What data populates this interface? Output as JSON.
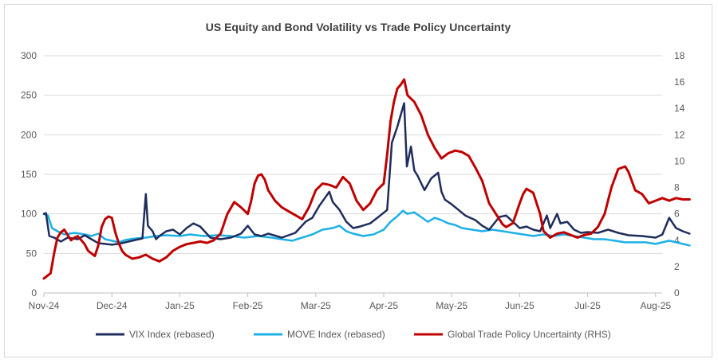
{
  "chart_data": {
    "type": "line",
    "title": "US Equity and Bond Volatility vs Trade Policy Uncertainty",
    "x": [
      "Nov-24",
      "Dec-24",
      "Jan-25",
      "Feb-25",
      "Mar-25",
      "Apr-25",
      "May-25",
      "Jun-25",
      "Jul-25",
      "Aug-25"
    ],
    "ylim_left": [
      0,
      300
    ],
    "yticks_left": [
      0,
      50,
      100,
      150,
      200,
      250,
      300
    ],
    "ylim_right": [
      0,
      18
    ],
    "yticks_right": [
      0,
      2,
      4,
      6,
      8,
      10,
      12,
      14,
      16,
      18
    ],
    "legend_position": "bottom",
    "series": [
      {
        "name": "VIX Index (rebased)",
        "axis": "left",
        "color": "#1f2d5c",
        "points": [
          [
            0,
            100
          ],
          [
            0.03,
            101
          ],
          [
            0.08,
            72
          ],
          [
            0.15,
            70
          ],
          [
            0.25,
            65
          ],
          [
            0.35,
            70
          ],
          [
            0.5,
            68
          ],
          [
            0.6,
            73
          ],
          [
            0.7,
            68
          ],
          [
            0.8,
            63
          ],
          [
            0.9,
            62
          ],
          [
            1.0,
            61
          ],
          [
            1.1,
            62
          ],
          [
            1.2,
            64
          ],
          [
            1.35,
            67
          ],
          [
            1.45,
            69
          ],
          [
            1.5,
            125
          ],
          [
            1.53,
            85
          ],
          [
            1.6,
            78
          ],
          [
            1.65,
            68
          ],
          [
            1.7,
            72
          ],
          [
            1.8,
            78
          ],
          [
            1.9,
            80
          ],
          [
            2.0,
            74
          ],
          [
            2.1,
            82
          ],
          [
            2.2,
            88
          ],
          [
            2.3,
            84
          ],
          [
            2.45,
            70
          ],
          [
            2.6,
            68
          ],
          [
            2.75,
            70
          ],
          [
            2.9,
            75
          ],
          [
            3.0,
            85
          ],
          [
            3.1,
            74
          ],
          [
            3.2,
            72
          ],
          [
            3.3,
            75
          ],
          [
            3.5,
            70
          ],
          [
            3.7,
            76
          ],
          [
            3.85,
            90
          ],
          [
            3.95,
            95
          ],
          [
            4.05,
            110
          ],
          [
            4.15,
            122
          ],
          [
            4.2,
            128
          ],
          [
            4.25,
            115
          ],
          [
            4.35,
            105
          ],
          [
            4.45,
            90
          ],
          [
            4.55,
            82
          ],
          [
            4.65,
            84
          ],
          [
            4.8,
            88
          ],
          [
            4.95,
            98
          ],
          [
            5.05,
            105
          ],
          [
            5.12,
            190
          ],
          [
            5.2,
            210
          ],
          [
            5.3,
            240
          ],
          [
            5.34,
            160
          ],
          [
            5.4,
            185
          ],
          [
            5.45,
            155
          ],
          [
            5.5,
            148
          ],
          [
            5.6,
            130
          ],
          [
            5.7,
            145
          ],
          [
            5.8,
            152
          ],
          [
            5.85,
            128
          ],
          [
            5.9,
            118
          ],
          [
            6.0,
            112
          ],
          [
            6.1,
            105
          ],
          [
            6.2,
            98
          ],
          [
            6.35,
            92
          ],
          [
            6.45,
            85
          ],
          [
            6.55,
            80
          ],
          [
            6.7,
            96
          ],
          [
            6.8,
            98
          ],
          [
            6.9,
            90
          ],
          [
            7.0,
            82
          ],
          [
            7.1,
            84
          ],
          [
            7.2,
            80
          ],
          [
            7.3,
            78
          ],
          [
            7.4,
            98
          ],
          [
            7.45,
            82
          ],
          [
            7.55,
            100
          ],
          [
            7.6,
            88
          ],
          [
            7.7,
            90
          ],
          [
            7.8,
            80
          ],
          [
            7.9,
            76
          ],
          [
            8.0,
            77
          ],
          [
            8.15,
            76
          ],
          [
            8.3,
            80
          ],
          [
            8.45,
            76
          ],
          [
            8.6,
            73
          ],
          [
            8.8,
            72
          ],
          [
            9.0,
            70
          ],
          [
            9.1,
            74
          ],
          [
            9.2,
            95
          ],
          [
            9.3,
            82
          ],
          [
            9.4,
            78
          ],
          [
            9.5,
            75
          ]
        ]
      },
      {
        "name": "MOVE Index (rebased)",
        "axis": "left",
        "color": "#1cb0e6",
        "points": [
          [
            0,
            100
          ],
          [
            0.06,
            98
          ],
          [
            0.12,
            82
          ],
          [
            0.2,
            78
          ],
          [
            0.3,
            74
          ],
          [
            0.45,
            76
          ],
          [
            0.6,
            74
          ],
          [
            0.7,
            72
          ],
          [
            0.8,
            75
          ],
          [
            0.9,
            68
          ],
          [
            1.0,
            66
          ],
          [
            1.1,
            64
          ],
          [
            1.2,
            67
          ],
          [
            1.35,
            69
          ],
          [
            1.5,
            70
          ],
          [
            1.65,
            72
          ],
          [
            1.8,
            73
          ],
          [
            2.0,
            72
          ],
          [
            2.15,
            74
          ],
          [
            2.35,
            72
          ],
          [
            2.55,
            73
          ],
          [
            2.75,
            72
          ],
          [
            2.95,
            70
          ],
          [
            3.15,
            72
          ],
          [
            3.35,
            70
          ],
          [
            3.5,
            68
          ],
          [
            3.65,
            66
          ],
          [
            3.8,
            70
          ],
          [
            3.95,
            74
          ],
          [
            4.1,
            80
          ],
          [
            4.25,
            82
          ],
          [
            4.35,
            85
          ],
          [
            4.45,
            78
          ],
          [
            4.55,
            75
          ],
          [
            4.7,
            72
          ],
          [
            4.85,
            74
          ],
          [
            5.0,
            80
          ],
          [
            5.1,
            90
          ],
          [
            5.2,
            97
          ],
          [
            5.28,
            104
          ],
          [
            5.35,
            100
          ],
          [
            5.45,
            102
          ],
          [
            5.55,
            96
          ],
          [
            5.65,
            90
          ],
          [
            5.75,
            95
          ],
          [
            5.85,
            92
          ],
          [
            5.95,
            88
          ],
          [
            6.05,
            86
          ],
          [
            6.15,
            82
          ],
          [
            6.3,
            80
          ],
          [
            6.45,
            78
          ],
          [
            6.6,
            80
          ],
          [
            6.75,
            78
          ],
          [
            6.9,
            76
          ],
          [
            7.05,
            74
          ],
          [
            7.2,
            72
          ],
          [
            7.35,
            74
          ],
          [
            7.5,
            72
          ],
          [
            7.65,
            74
          ],
          [
            7.8,
            72
          ],
          [
            7.95,
            70
          ],
          [
            8.1,
            68
          ],
          [
            8.25,
            68
          ],
          [
            8.4,
            66
          ],
          [
            8.55,
            64
          ],
          [
            8.7,
            64
          ],
          [
            8.85,
            64
          ],
          [
            9.0,
            62
          ],
          [
            9.1,
            64
          ],
          [
            9.2,
            66
          ],
          [
            9.3,
            64
          ],
          [
            9.4,
            62
          ],
          [
            9.5,
            60
          ]
        ]
      },
      {
        "name": "Global Trade Policy Uncertainty (RHS)",
        "axis": "right",
        "color": "#c00000",
        "points": [
          [
            0,
            1.1
          ],
          [
            0.05,
            1.3
          ],
          [
            0.1,
            1.5
          ],
          [
            0.15,
            3.0
          ],
          [
            0.2,
            4.2
          ],
          [
            0.25,
            4.6
          ],
          [
            0.3,
            4.8
          ],
          [
            0.35,
            4.4
          ],
          [
            0.4,
            4.0
          ],
          [
            0.45,
            4.2
          ],
          [
            0.5,
            4.3
          ],
          [
            0.55,
            4.0
          ],
          [
            0.6,
            3.7
          ],
          [
            0.65,
            3.2
          ],
          [
            0.7,
            3.0
          ],
          [
            0.75,
            2.8
          ],
          [
            0.8,
            3.6
          ],
          [
            0.85,
            5.0
          ],
          [
            0.9,
            5.6
          ],
          [
            0.95,
            5.8
          ],
          [
            1.0,
            5.7
          ],
          [
            1.05,
            4.6
          ],
          [
            1.1,
            3.8
          ],
          [
            1.15,
            3.2
          ],
          [
            1.2,
            2.9
          ],
          [
            1.3,
            2.6
          ],
          [
            1.4,
            2.7
          ],
          [
            1.5,
            2.9
          ],
          [
            1.6,
            2.6
          ],
          [
            1.7,
            2.4
          ],
          [
            1.8,
            2.7
          ],
          [
            1.9,
            3.2
          ],
          [
            2.0,
            3.5
          ],
          [
            2.1,
            3.7
          ],
          [
            2.2,
            3.8
          ],
          [
            2.3,
            3.9
          ],
          [
            2.4,
            3.8
          ],
          [
            2.5,
            4.0
          ],
          [
            2.6,
            4.5
          ],
          [
            2.7,
            6.0
          ],
          [
            2.8,
            6.9
          ],
          [
            2.9,
            6.5
          ],
          [
            3.0,
            6.0
          ],
          [
            3.05,
            7.0
          ],
          [
            3.1,
            8.3
          ],
          [
            3.15,
            8.9
          ],
          [
            3.2,
            9.0
          ],
          [
            3.25,
            8.6
          ],
          [
            3.3,
            7.8
          ],
          [
            3.4,
            7.0
          ],
          [
            3.5,
            6.5
          ],
          [
            3.6,
            6.2
          ],
          [
            3.7,
            5.9
          ],
          [
            3.8,
            5.6
          ],
          [
            3.9,
            6.5
          ],
          [
            4.0,
            7.8
          ],
          [
            4.1,
            8.3
          ],
          [
            4.2,
            8.2
          ],
          [
            4.3,
            8.0
          ],
          [
            4.4,
            8.8
          ],
          [
            4.5,
            8.3
          ],
          [
            4.6,
            7.0
          ],
          [
            4.7,
            6.3
          ],
          [
            4.8,
            6.8
          ],
          [
            4.9,
            7.8
          ],
          [
            5.0,
            8.3
          ],
          [
            5.05,
            10.5
          ],
          [
            5.1,
            13.0
          ],
          [
            5.15,
            14.5
          ],
          [
            5.2,
            15.5
          ],
          [
            5.25,
            15.8
          ],
          [
            5.3,
            16.2
          ],
          [
            5.35,
            15.0
          ],
          [
            5.45,
            14.5
          ],
          [
            5.55,
            13.5
          ],
          [
            5.65,
            12.0
          ],
          [
            5.75,
            11.0
          ],
          [
            5.85,
            10.2
          ],
          [
            5.95,
            10.6
          ],
          [
            6.05,
            10.8
          ],
          [
            6.15,
            10.7
          ],
          [
            6.25,
            10.4
          ],
          [
            6.35,
            9.5
          ],
          [
            6.45,
            8.5
          ],
          [
            6.55,
            6.8
          ],
          [
            6.65,
            6.0
          ],
          [
            6.75,
            5.2
          ],
          [
            6.8,
            5.0
          ],
          [
            6.9,
            5.3
          ],
          [
            7.0,
            6.8
          ],
          [
            7.05,
            7.5
          ],
          [
            7.1,
            7.9
          ],
          [
            7.2,
            7.6
          ],
          [
            7.3,
            6.0
          ],
          [
            7.35,
            4.7
          ],
          [
            7.45,
            4.2
          ],
          [
            7.55,
            4.5
          ],
          [
            7.65,
            4.6
          ],
          [
            7.75,
            4.4
          ],
          [
            7.85,
            4.2
          ],
          [
            7.95,
            4.4
          ],
          [
            8.05,
            4.5
          ],
          [
            8.15,
            5.0
          ],
          [
            8.25,
            6.0
          ],
          [
            8.35,
            8.0
          ],
          [
            8.45,
            9.4
          ],
          [
            8.55,
            9.6
          ],
          [
            8.6,
            9.2
          ],
          [
            8.7,
            7.8
          ],
          [
            8.8,
            7.5
          ],
          [
            8.9,
            6.8
          ],
          [
            9.0,
            7.0
          ],
          [
            9.1,
            7.2
          ],
          [
            9.2,
            7.0
          ],
          [
            9.3,
            7.2
          ],
          [
            9.4,
            7.1
          ],
          [
            9.5,
            7.1
          ]
        ]
      }
    ]
  }
}
